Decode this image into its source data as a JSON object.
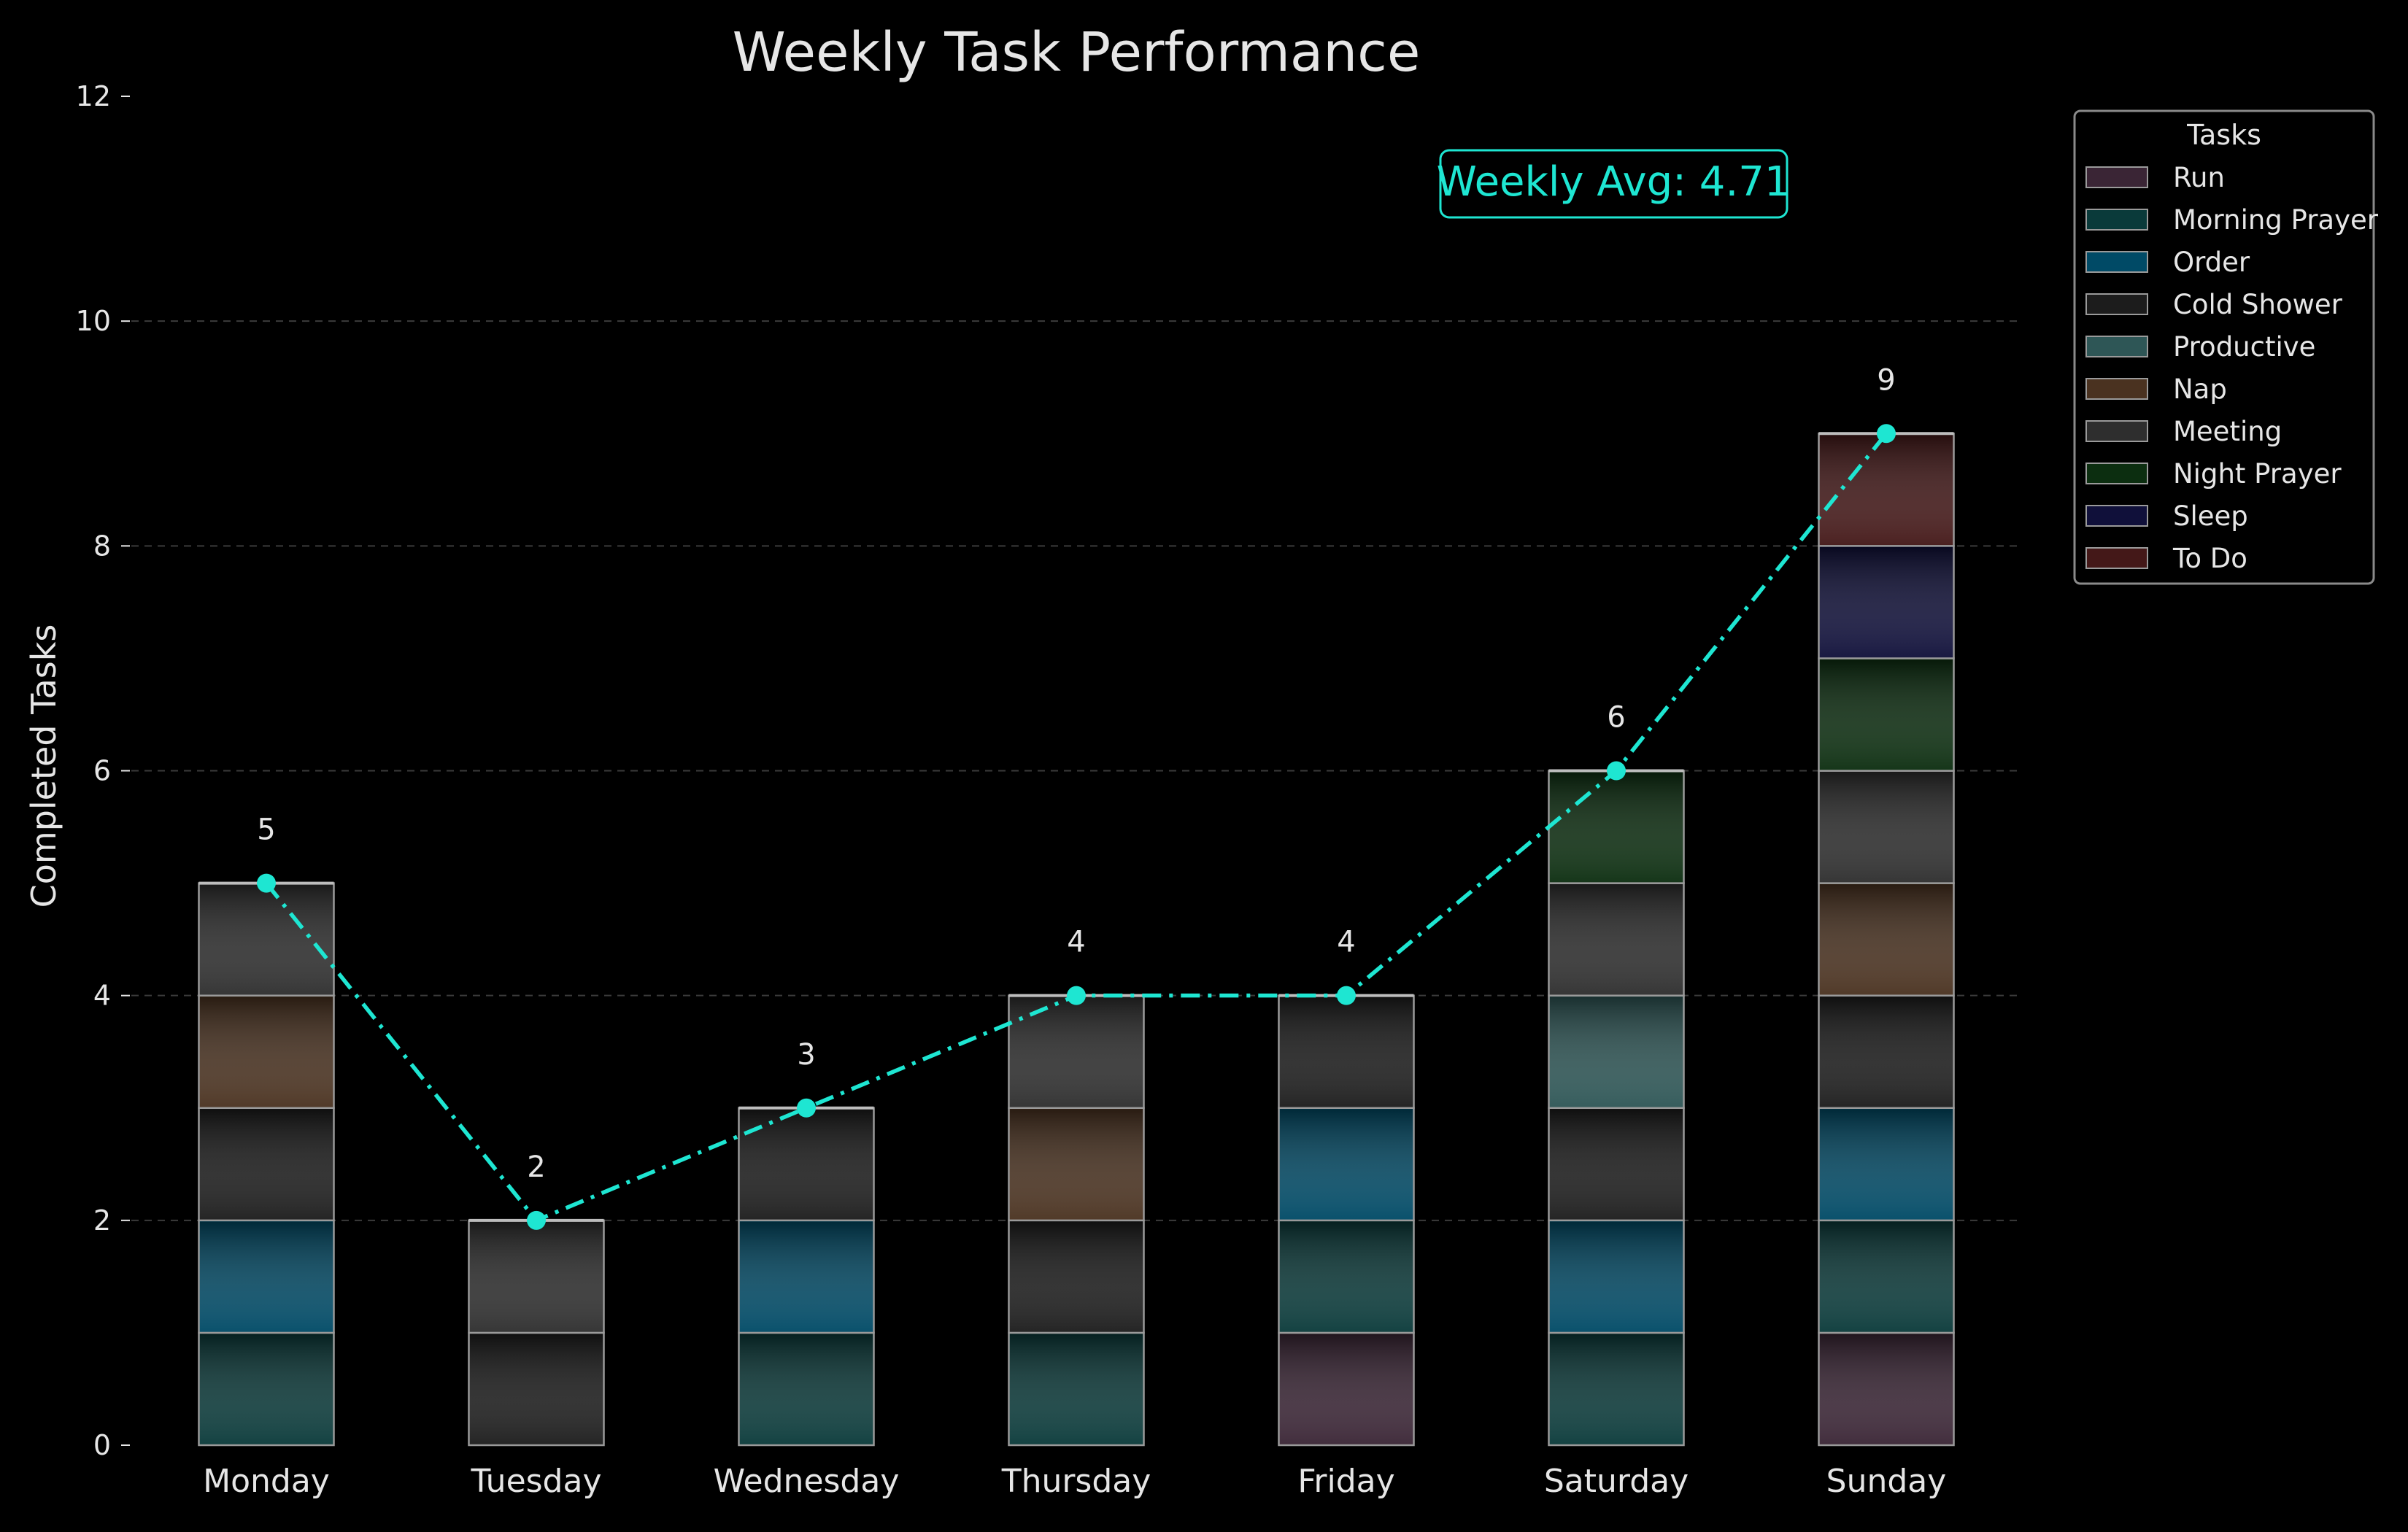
{
  "chart_data": {
    "type": "bar",
    "title": "Weekly Task Performance",
    "xlabel": "",
    "ylabel": "Completed Tasks",
    "ylim": [
      0,
      12
    ],
    "yticks": [
      0,
      2,
      4,
      6,
      8,
      10,
      12
    ],
    "grid": true,
    "categories": [
      "Monday",
      "Tuesday",
      "Wednesday",
      "Thursday",
      "Friday",
      "Saturday",
      "Sunday"
    ],
    "series": [
      {
        "name": "Run",
        "color": "#3a2535",
        "values": [
          0,
          0,
          0,
          0,
          1,
          0,
          1
        ]
      },
      {
        "name": "Morning Prayer",
        "color": "#0a3a3a",
        "values": [
          1,
          0,
          1,
          1,
          1,
          1,
          1
        ]
      },
      {
        "name": "Order",
        "color": "#004a66",
        "values": [
          1,
          0,
          1,
          0,
          1,
          1,
          1
        ]
      },
      {
        "name": "Cold Shower",
        "color": "#1c1c1c",
        "values": [
          1,
          1,
          1,
          1,
          1,
          1,
          1
        ]
      },
      {
        "name": "Productive",
        "color": "#2e5656",
        "values": [
          0,
          0,
          0,
          0,
          0,
          1,
          0
        ]
      },
      {
        "name": "Nap",
        "color": "#4a3220",
        "values": [
          1,
          0,
          0,
          1,
          0,
          0,
          1
        ]
      },
      {
        "name": "Meeting",
        "color": "#2e2e2e",
        "values": [
          1,
          1,
          0,
          1,
          0,
          1,
          1
        ]
      },
      {
        "name": "Night Prayer",
        "color": "#0c2e10",
        "values": [
          0,
          0,
          0,
          0,
          0,
          1,
          1
        ]
      },
      {
        "name": "Sleep",
        "color": "#10103a",
        "values": [
          0,
          0,
          0,
          0,
          0,
          0,
          1
        ]
      },
      {
        "name": "To Do",
        "color": "#441818",
        "values": [
          0,
          0,
          0,
          0,
          0,
          0,
          1
        ]
      }
    ],
    "totals": [
      5,
      2,
      3,
      4,
      4,
      6,
      9
    ],
    "line_color": "#1ee6d2",
    "annotation": "Weekly Avg: 4.71",
    "legend_title": "Tasks",
    "legend_position": "upper-right outside"
  }
}
